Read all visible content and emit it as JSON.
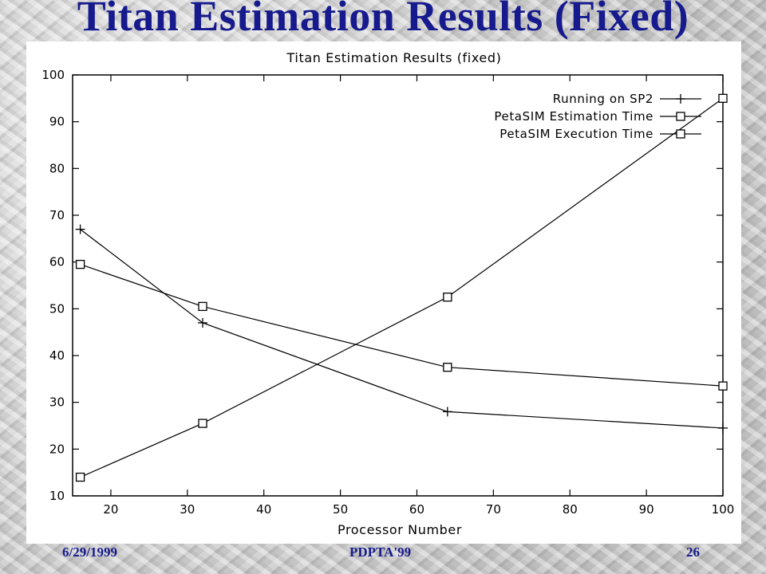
{
  "slide": {
    "title": "Titan Estimation Results (Fixed)",
    "footer_date": "6/29/1999",
    "footer_conference": "PDPTA'99",
    "footer_page": "26",
    "title_color": "#161a8c"
  },
  "chart_data": {
    "type": "line",
    "title": "Titan Estimation Results (fixed)",
    "xlabel": "Processor Number",
    "ylabel": "",
    "xlim": [
      15,
      100
    ],
    "ylim": [
      10,
      100
    ],
    "x_ticks": [
      20,
      30,
      40,
      50,
      60,
      70,
      80,
      90,
      100
    ],
    "y_ticks": [
      10,
      20,
      30,
      40,
      50,
      60,
      70,
      80,
      90,
      100
    ],
    "grid": false,
    "legend_position": "top-right",
    "series": [
      {
        "name": "Running on SP2",
        "marker": "plus",
        "x": [
          16,
          32,
          64,
          100
        ],
        "y": [
          67,
          47,
          28,
          24.5
        ]
      },
      {
        "name": "PetaSIM Estimation Time",
        "marker": "square",
        "x": [
          16,
          32,
          64,
          100
        ],
        "y": [
          59.5,
          50.5,
          37.5,
          33.5
        ]
      },
      {
        "name": "PetaSIM Execution Time",
        "marker": "square",
        "x": [
          16,
          32,
          64,
          100
        ],
        "y": [
          14,
          25.5,
          52.5,
          95
        ]
      }
    ]
  }
}
